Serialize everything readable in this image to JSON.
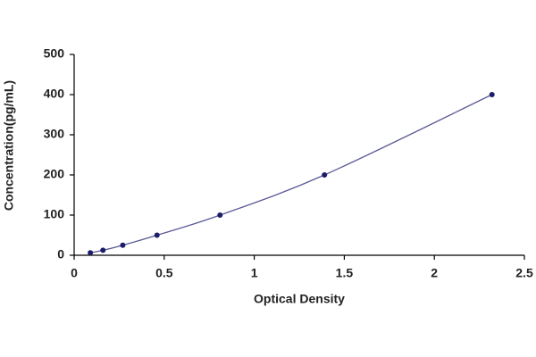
{
  "chart_data": {
    "type": "scatter",
    "xlabel": "Optical Density",
    "ylabel": "Concentration(pg/mL)",
    "x": [
      0.09,
      0.16,
      0.27,
      0.46,
      0.81,
      1.39,
      2.32
    ],
    "values": [
      6.25,
      12.5,
      25,
      50,
      100,
      200,
      400
    ],
    "color": "#1c1c6b",
    "line_color": "#5a5a96",
    "xlim": [
      0,
      2.5
    ],
    "xticks": [
      0,
      0.5,
      1,
      1.5,
      2,
      2.5
    ],
    "ylim": [
      0,
      500
    ],
    "yticks": [
      0,
      100,
      200,
      300,
      400,
      500
    ]
  }
}
